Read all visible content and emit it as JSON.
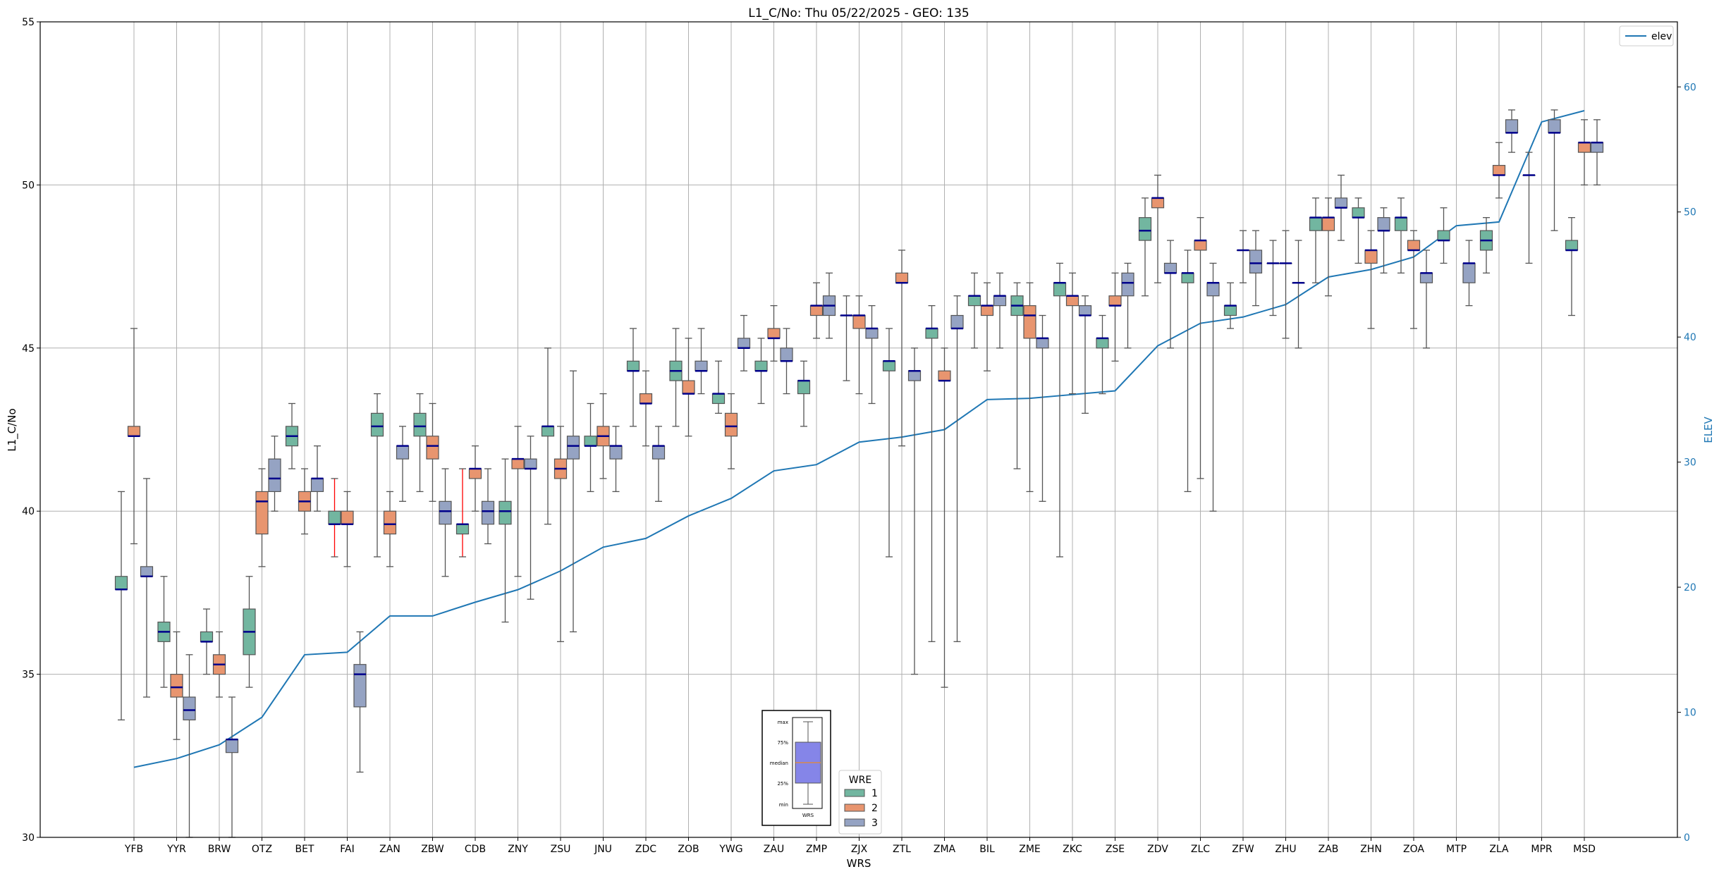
{
  "chart_data": {
    "type": "box",
    "title": "L1_C/No: Thu 05/22/2025 - GEO: 135",
    "xlabel": "WRS",
    "ylabel": "L1_C/No",
    "y2label": "ELEV",
    "ylim": [
      30,
      55
    ],
    "y2lim": [
      0,
      65.2
    ],
    "yticks": [
      30,
      35,
      40,
      45,
      50,
      55
    ],
    "y2ticks": [
      0,
      10,
      20,
      30,
      40,
      50,
      60
    ],
    "grid": true,
    "categories": [
      "YFB",
      "YYR",
      "BRW",
      "OTZ",
      "BET",
      "FAI",
      "ZAN",
      "ZBW",
      "CDB",
      "ZNY",
      "ZSU",
      "JNU",
      "ZDC",
      "ZOB",
      "YWG",
      "ZAU",
      "ZMP",
      "ZJX",
      "ZTL",
      "ZMA",
      "BIL",
      "ZME",
      "ZKC",
      "ZSE",
      "ZDV",
      "ZLC",
      "ZFW",
      "ZHU",
      "ZAB",
      "ZHN",
      "ZOA",
      "MTP",
      "ZLA",
      "MPR",
      "MSD"
    ],
    "box_fields": [
      "wre",
      "min",
      "q1",
      "median",
      "q3",
      "max"
    ],
    "boxes": [
      [
        [
          1,
          33.6,
          37.6,
          37.6,
          38.0,
          40.6
        ],
        [
          2,
          39.0,
          42.3,
          42.3,
          42.6,
          45.6
        ],
        [
          3,
          34.3,
          38.0,
          38.0,
          38.3,
          41.0
        ]
      ],
      [
        [
          1,
          34.6,
          36.0,
          36.3,
          36.6,
          38.0
        ],
        [
          2,
          33.0,
          34.3,
          34.6,
          35.0,
          36.3
        ],
        [
          3,
          30.0,
          33.6,
          33.9,
          34.3,
          35.6
        ]
      ],
      [
        [
          1,
          35.0,
          36.0,
          36.0,
          36.3,
          37.0
        ],
        [
          2,
          34.3,
          35.0,
          35.3,
          35.6,
          36.3
        ],
        [
          3,
          30.0,
          32.6,
          33.0,
          33.0,
          34.3
        ]
      ],
      [
        [
          1,
          34.6,
          35.6,
          36.3,
          37.0,
          38.0
        ],
        [
          2,
          38.3,
          39.3,
          40.3,
          40.6,
          41.3
        ],
        [
          3,
          40.0,
          40.6,
          41.0,
          41.6,
          42.3
        ]
      ],
      [
        [
          1,
          41.3,
          42.0,
          42.3,
          42.6,
          43.3
        ],
        [
          2,
          39.3,
          40.0,
          40.3,
          40.6,
          41.3
        ],
        [
          3,
          40.0,
          40.6,
          41.0,
          41.0,
          42.0
        ]
      ],
      [
        [
          1,
          38.6,
          39.6,
          39.6,
          40.0,
          41.0,
          "red"
        ],
        [
          2,
          38.3,
          39.6,
          39.6,
          40.0,
          40.6
        ],
        [
          3,
          32.0,
          34.0,
          35.0,
          35.3,
          36.3
        ]
      ],
      [
        [
          1,
          38.6,
          42.3,
          42.6,
          43.0,
          43.6
        ],
        [
          2,
          38.3,
          39.3,
          39.6,
          40.0,
          40.6
        ],
        [
          3,
          40.3,
          41.6,
          42.0,
          42.0,
          42.6
        ]
      ],
      [
        [
          1,
          40.6,
          42.3,
          42.6,
          43.0,
          43.6
        ],
        [
          2,
          40.3,
          41.6,
          42.0,
          42.3,
          43.3
        ],
        [
          3,
          38.0,
          39.6,
          40.0,
          40.3,
          41.3
        ]
      ],
      [
        [
          1,
          38.6,
          39.3,
          39.6,
          39.6,
          41.3,
          "red"
        ],
        [
          2,
          40.0,
          41.0,
          41.3,
          41.3,
          42.0
        ],
        [
          3,
          39.0,
          39.6,
          40.0,
          40.3,
          41.3
        ]
      ],
      [
        [
          1,
          36.6,
          39.6,
          40.0,
          40.3,
          41.6
        ],
        [
          2,
          38.0,
          41.3,
          41.6,
          41.6,
          42.6
        ],
        [
          3,
          37.3,
          41.3,
          41.3,
          41.6,
          42.3
        ]
      ],
      [
        [
          1,
          39.6,
          42.3,
          42.6,
          42.6,
          45.0
        ],
        [
          2,
          36.0,
          41.0,
          41.3,
          41.6,
          42.6
        ],
        [
          3,
          36.3,
          41.6,
          42.0,
          42.3,
          44.3
        ]
      ],
      [
        [
          1,
          40.6,
          42.0,
          42.0,
          42.3,
          43.3
        ],
        [
          2,
          41.0,
          42.0,
          42.3,
          42.6,
          43.6
        ],
        [
          3,
          40.6,
          41.6,
          42.0,
          42.0,
          42.6
        ]
      ],
      [
        [
          1,
          42.6,
          44.3,
          44.3,
          44.6,
          45.6
        ],
        [
          2,
          42.0,
          43.3,
          43.3,
          43.6,
          44.3
        ],
        [
          3,
          40.3,
          41.6,
          42.0,
          42.0,
          42.6
        ]
      ],
      [
        [
          1,
          42.6,
          44.0,
          44.3,
          44.6,
          45.6
        ],
        [
          2,
          42.3,
          43.6,
          43.6,
          44.0,
          45.3
        ],
        [
          3,
          43.6,
          44.3,
          44.3,
          44.6,
          45.6
        ]
      ],
      [
        [
          1,
          43.0,
          43.3,
          43.6,
          43.6,
          44.6
        ],
        [
          2,
          41.3,
          42.3,
          42.6,
          43.0,
          43.6
        ],
        [
          3,
          44.3,
          45.0,
          45.0,
          45.3,
          46.0
        ]
      ],
      [
        [
          1,
          43.3,
          44.3,
          44.3,
          44.6,
          45.3
        ],
        [
          2,
          44.6,
          45.3,
          45.3,
          45.6,
          46.3
        ],
        [
          3,
          43.6,
          44.6,
          44.6,
          45.0,
          45.6
        ]
      ],
      [
        [
          1,
          42.6,
          43.6,
          44.0,
          44.0,
          44.6
        ],
        [
          2,
          45.3,
          46.0,
          46.3,
          46.3,
          47.0
        ],
        [
          3,
          45.3,
          46.0,
          46.3,
          46.6,
          47.3
        ]
      ],
      [
        [
          1,
          44.0,
          46.0,
          46.0,
          46.0,
          46.6
        ],
        [
          2,
          43.6,
          45.6,
          46.0,
          46.0,
          46.6
        ],
        [
          3,
          43.3,
          45.3,
          45.6,
          45.6,
          46.3
        ]
      ],
      [
        [
          1,
          38.6,
          44.3,
          44.6,
          44.6,
          45.6
        ],
        [
          2,
          42.0,
          47.0,
          47.0,
          47.3,
          48.0
        ],
        [
          3,
          35.0,
          44.0,
          44.3,
          44.3,
          45.0
        ]
      ],
      [
        [
          1,
          36.0,
          45.3,
          45.6,
          45.6,
          46.3
        ],
        [
          2,
          34.6,
          44.0,
          44.0,
          44.3,
          45.0
        ],
        [
          3,
          36.0,
          45.6,
          45.6,
          46.0,
          46.6
        ]
      ],
      [
        [
          1,
          45.0,
          46.3,
          46.6,
          46.6,
          47.3
        ],
        [
          2,
          44.3,
          46.0,
          46.3,
          46.3,
          47.0
        ],
        [
          3,
          45.0,
          46.3,
          46.6,
          46.6,
          47.3
        ]
      ],
      [
        [
          1,
          41.3,
          46.0,
          46.3,
          46.6,
          47.0
        ],
        [
          2,
          40.6,
          45.3,
          46.0,
          46.3,
          47.0
        ],
        [
          3,
          40.3,
          45.0,
          45.3,
          45.3,
          46.0
        ]
      ],
      [
        [
          1,
          38.6,
          46.6,
          47.0,
          47.0,
          47.6
        ],
        [
          2,
          43.6,
          46.3,
          46.6,
          46.6,
          47.3
        ],
        [
          3,
          43.0,
          46.0,
          46.0,
          46.3,
          46.6
        ]
      ],
      [
        [
          1,
          43.6,
          45.0,
          45.3,
          45.3,
          46.0
        ],
        [
          2,
          44.6,
          46.3,
          46.3,
          46.6,
          47.3
        ],
        [
          3,
          45.0,
          46.6,
          47.0,
          47.3,
          47.6
        ]
      ],
      [
        [
          1,
          46.6,
          48.3,
          48.6,
          49.0,
          49.6
        ],
        [
          2,
          47.0,
          49.3,
          49.6,
          49.6,
          50.3
        ],
        [
          3,
          45.0,
          47.3,
          47.3,
          47.6,
          48.3
        ]
      ],
      [
        [
          1,
          40.6,
          47.0,
          47.3,
          47.3,
          48.0
        ],
        [
          2,
          41.0,
          48.0,
          48.3,
          48.3,
          49.0
        ],
        [
          3,
          40.0,
          46.6,
          47.0,
          47.0,
          47.6
        ]
      ],
      [
        [
          1,
          45.6,
          46.0,
          46.3,
          46.3,
          47.0
        ],
        [
          2,
          47.0,
          48.0,
          48.0,
          48.0,
          48.6
        ],
        [
          3,
          46.3,
          47.3,
          47.6,
          48.0,
          48.6
        ]
      ],
      [
        [
          1,
          46.0,
          47.6,
          47.6,
          47.6,
          48.3
        ],
        [
          2,
          45.3,
          47.6,
          47.6,
          47.6,
          48.6
        ],
        [
          3,
          45.0,
          47.0,
          47.0,
          47.0,
          48.3
        ]
      ],
      [
        [
          1,
          47.0,
          48.6,
          49.0,
          49.0,
          49.6
        ],
        [
          2,
          46.6,
          48.6,
          49.0,
          49.0,
          49.6
        ],
        [
          3,
          48.3,
          49.3,
          49.3,
          49.6,
          50.3
        ]
      ],
      [
        [
          1,
          47.6,
          49.0,
          49.0,
          49.3,
          49.6
        ],
        [
          2,
          45.6,
          47.6,
          48.0,
          48.0,
          48.6
        ],
        [
          3,
          47.3,
          48.6,
          48.6,
          49.0,
          49.3
        ]
      ],
      [
        [
          1,
          47.3,
          48.6,
          49.0,
          49.0,
          49.6
        ],
        [
          2,
          45.6,
          48.0,
          48.0,
          48.3,
          48.6
        ],
        [
          3,
          45.0,
          47.0,
          47.3,
          47.3,
          48.0
        ]
      ],
      [
        [
          1,
          47.6,
          48.3,
          48.3,
          48.6,
          49.3
        ],
        [
          3,
          46.3,
          47.0,
          47.6,
          47.6,
          48.3
        ]
      ],
      [
        [
          1,
          47.3,
          48.0,
          48.3,
          48.6,
          49.0
        ],
        [
          2,
          49.6,
          50.3,
          50.3,
          50.6,
          51.3
        ],
        [
          3,
          51.0,
          51.6,
          51.6,
          52.0,
          52.3
        ]
      ],
      [
        [
          1,
          47.6,
          50.3,
          50.3,
          50.3,
          51.0
        ],
        [
          3,
          48.6,
          51.6,
          51.6,
          52.0,
          52.3
        ]
      ],
      [
        [
          1,
          46.0,
          48.0,
          48.0,
          48.3,
          49.0
        ],
        [
          2,
          50.0,
          51.0,
          51.3,
          51.3,
          52.0
        ],
        [
          3,
          50.0,
          51.0,
          51.3,
          51.3,
          52.0
        ]
      ]
    ],
    "elev_series": {
      "name": "elev",
      "color": "#1f77b4",
      "values": [
        5.6,
        6.3,
        7.4,
        9.6,
        14.6,
        14.8,
        17.7,
        17.7,
        18.8,
        19.8,
        21.3,
        23.2,
        23.9,
        25.7,
        27.1,
        29.3,
        29.8,
        31.6,
        32.0,
        32.6,
        35.0,
        35.1,
        35.4,
        35.7,
        39.3,
        41.1,
        41.6,
        42.6,
        44.8,
        45.4,
        46.4,
        48.9,
        49.2,
        57.2,
        58.1
      ]
    },
    "wre_legend": {
      "title": "WRE",
      "entries": [
        {
          "label": "1",
          "color": "#72b6a0"
        },
        {
          "label": "2",
          "color": "#e8956f"
        },
        {
          "label": "3",
          "color": "#95a3c3"
        }
      ]
    },
    "inset_legend": {
      "labels": [
        "max",
        "75%",
        "median",
        "25%",
        "min"
      ],
      "xlabel": "WRS",
      "box_color": "#8585e8",
      "median_color": "#ff8c00"
    },
    "median_color": "#00008b",
    "whisker_color": "#555555"
  }
}
